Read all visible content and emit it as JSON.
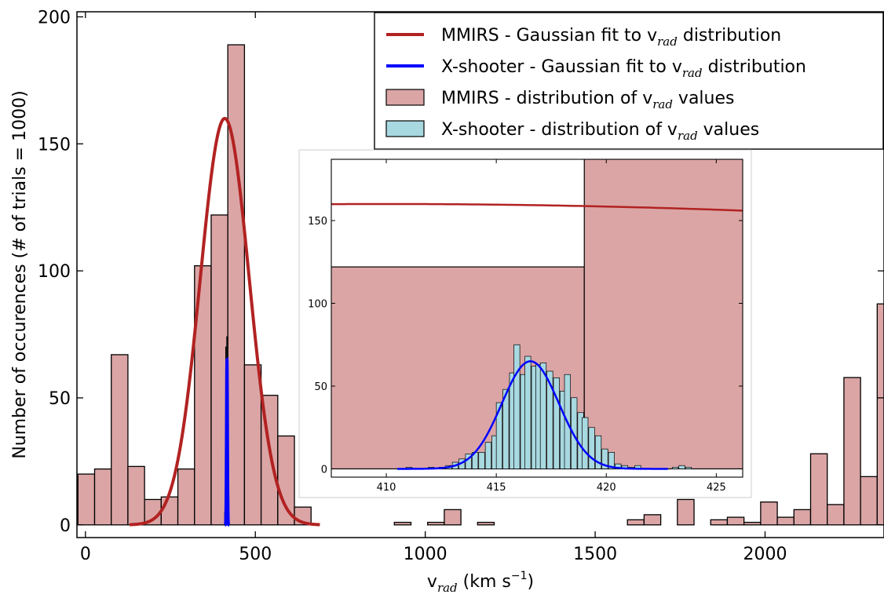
{
  "chart_data": {
    "type": "bar",
    "title": "",
    "xlabel": {
      "main": "v",
      "sub": "rad",
      "unit_pre": " (km s",
      "unit_sup": "−1",
      "unit_post": ")"
    },
    "ylabel": "Number of occurences (# of trials = 1000)",
    "xlim": [
      -25,
      2350
    ],
    "ylim": [
      -5,
      202
    ],
    "xticks": [
      0,
      500,
      1000,
      1500,
      2000
    ],
    "yticks": [
      0,
      50,
      100,
      150,
      200
    ],
    "grid": false,
    "legend_position": "top-right",
    "legend": [
      {
        "kind": "line",
        "color": "#b22222",
        "pre": "MMIRS - Gaussian fit to v",
        "sub": "rad",
        "post": " distribution"
      },
      {
        "kind": "line",
        "color": "#0000ff",
        "pre": "X-shooter - Gaussian fit to v",
        "sub": "rad",
        "post": " distribution"
      },
      {
        "kind": "patch",
        "color": "#dba5a5",
        "pre": "MMIRS - distribution of v",
        "sub": "rad",
        "post": " values"
      },
      {
        "kind": "patch",
        "color": "#a8d8e0",
        "pre": "X-shooter - distribution of v",
        "sub": "rad",
        "post": " values"
      }
    ],
    "series": [
      {
        "name": "MMIRS - distribution of vrad values",
        "kind": "histogram",
        "color": "#dba5a5",
        "bins": [
          [
            -22,
            20
          ],
          [
            27,
            22
          ],
          [
            76,
            67
          ],
          [
            125,
            23
          ],
          [
            174,
            10
          ],
          [
            223,
            11
          ],
          [
            272,
            22
          ],
          [
            321,
            102
          ],
          [
            370,
            122
          ],
          [
            419,
            189
          ],
          [
            468,
            63
          ],
          [
            517,
            51
          ],
          [
            566,
            35
          ],
          [
            615,
            7
          ],
          [
            664,
            0
          ],
          [
            713,
            0
          ],
          [
            762,
            0
          ],
          [
            811,
            0
          ],
          [
            860,
            0
          ],
          [
            909,
            1
          ],
          [
            958,
            0
          ],
          [
            1007,
            1
          ],
          [
            1056,
            6
          ],
          [
            1105,
            0
          ],
          [
            1154,
            1
          ],
          [
            1203,
            0
          ],
          [
            1252,
            0
          ],
          [
            1301,
            0
          ],
          [
            1350,
            0
          ],
          [
            1399,
            0
          ],
          [
            1448,
            0
          ],
          [
            1497,
            0
          ],
          [
            1546,
            0
          ],
          [
            1595,
            2
          ],
          [
            1644,
            4
          ],
          [
            1693,
            0
          ],
          [
            1742,
            10
          ],
          [
            1791,
            0
          ],
          [
            1840,
            2
          ],
          [
            1889,
            3
          ],
          [
            1938,
            1
          ],
          [
            1987,
            9
          ],
          [
            2036,
            3
          ],
          [
            2085,
            6
          ],
          [
            2134,
            28
          ],
          [
            2183,
            8
          ],
          [
            2232,
            58
          ],
          [
            2281,
            19
          ],
          [
            2330,
            87
          ]
        ],
        "bin_width": 49
      },
      {
        "name": "X-shooter - distribution of vrad values",
        "kind": "histogram",
        "color": "#a8d8e0",
        "bins": [
          [
            410,
            5
          ],
          [
            413,
            70
          ],
          [
            416,
            74
          ],
          [
            419,
            10
          ]
        ],
        "bin_width": 3
      },
      {
        "name": "MMIRS - Gaussian fit to vrad distribution",
        "kind": "gaussian",
        "color": "#b22222",
        "amplitude": 160,
        "mean": 410,
        "sigma": 72,
        "x_range": [
          130,
          690
        ]
      },
      {
        "name": "X-shooter - Gaussian fit to vrad distribution",
        "kind": "gaussian",
        "color": "#0000ff",
        "amplitude": 65,
        "mean": 416.5,
        "sigma": 1.3,
        "x_range": [
          410.5,
          422.8
        ]
      }
    ],
    "inset": {
      "xlim": [
        407.5,
        426.2
      ],
      "ylim": [
        -5,
        187
      ],
      "xticks": [
        410,
        415,
        420,
        425
      ],
      "yticks": [
        0,
        50,
        100,
        150
      ],
      "mmirs_bins": [
        [
          370,
          122
        ],
        [
          419,
          189
        ],
        [
          468,
          63
        ]
      ],
      "mmirs_bin_width": 49,
      "xshooter_bins": [
        [
          410.9,
          1
        ],
        [
          411.9,
          1
        ],
        [
          412.4,
          1
        ],
        [
          412.7,
          2
        ],
        [
          413.0,
          4
        ],
        [
          413.3,
          6
        ],
        [
          413.6,
          9
        ],
        [
          413.9,
          10
        ],
        [
          414.2,
          10
        ],
        [
          414.5,
          16
        ],
        [
          414.8,
          20
        ],
        [
          415.0,
          40
        ],
        [
          415.3,
          48
        ],
        [
          415.6,
          58
        ],
        [
          415.8,
          75
        ],
        [
          416.1,
          57
        ],
        [
          416.3,
          68
        ],
        [
          416.6,
          62
        ],
        [
          416.8,
          63
        ],
        [
          417.0,
          64
        ],
        [
          417.3,
          59
        ],
        [
          417.6,
          55
        ],
        [
          417.9,
          47
        ],
        [
          418.1,
          57
        ],
        [
          418.4,
          43
        ],
        [
          418.7,
          34
        ],
        [
          418.9,
          31
        ],
        [
          419.2,
          25
        ],
        [
          419.5,
          20
        ],
        [
          419.8,
          12
        ],
        [
          420.1,
          10
        ],
        [
          420.4,
          3
        ],
        [
          420.7,
          2
        ],
        [
          421.0,
          1
        ],
        [
          421.3,
          2
        ],
        [
          423.0,
          1
        ],
        [
          423.3,
          2
        ],
        [
          423.6,
          1
        ]
      ],
      "xshooter_bin_width": 0.27,
      "mmirs_fit": {
        "amplitude": 160,
        "mean": 410,
        "sigma": 72
      },
      "xshooter_fit": {
        "amplitude": 65,
        "mean": 416.55,
        "sigma": 1.3,
        "x_range": [
          410.5,
          422.8
        ]
      }
    }
  }
}
